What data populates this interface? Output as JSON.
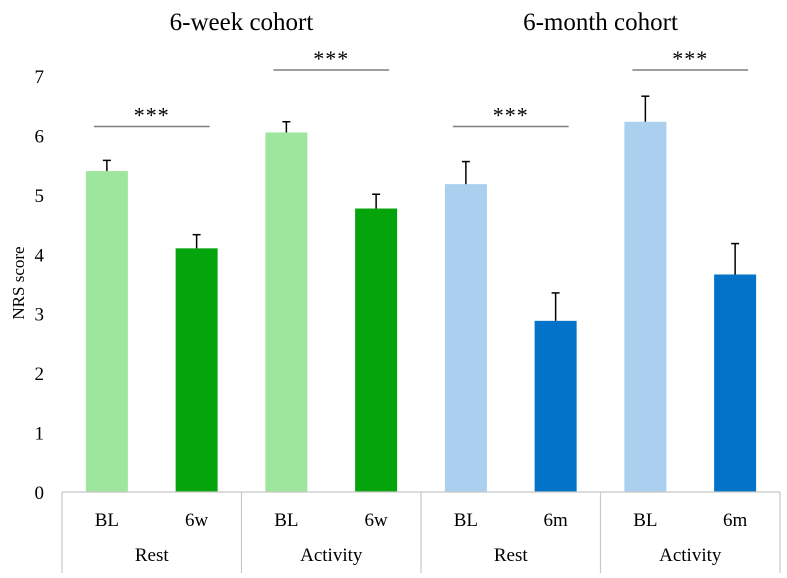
{
  "chart_data": {
    "type": "bar",
    "ylabel": "NRS score",
    "ylim": [
      0,
      7
    ],
    "yticks": [
      0,
      1,
      2,
      3,
      4,
      5,
      6,
      7
    ],
    "grid": false,
    "cohorts": [
      {
        "title": "6-week cohort"
      },
      {
        "title": "6-month cohort"
      }
    ],
    "groups": [
      {
        "label": "Rest"
      },
      {
        "label": "Activity"
      },
      {
        "label": "Rest"
      },
      {
        "label": "Activity"
      }
    ],
    "bars": [
      {
        "category": "BL",
        "value": 5.4,
        "error": 0.18,
        "color": "#9ee69e"
      },
      {
        "category": "6w",
        "value": 4.1,
        "error": 0.23,
        "color": "#05a40c"
      },
      {
        "category": "BL",
        "value": 6.05,
        "error": 0.18,
        "color": "#9ee69e"
      },
      {
        "category": "6w",
        "value": 4.77,
        "error": 0.24,
        "color": "#05a40c"
      },
      {
        "category": "BL",
        "value": 5.18,
        "error": 0.38,
        "color": "#aacfef"
      },
      {
        "category": "6m",
        "value": 2.88,
        "error": 0.47,
        "color": "#0273c8"
      },
      {
        "category": "BL",
        "value": 6.23,
        "error": 0.43,
        "color": "#aacfef"
      },
      {
        "category": "6m",
        "value": 3.66,
        "error": 0.52,
        "color": "#0273c8"
      }
    ],
    "annotations": [
      {
        "text": "***",
        "y": 6.15
      },
      {
        "text": "***",
        "y": 7.1
      },
      {
        "text": "***",
        "y": 6.15
      },
      {
        "text": "***",
        "y": 7.1
      }
    ]
  }
}
